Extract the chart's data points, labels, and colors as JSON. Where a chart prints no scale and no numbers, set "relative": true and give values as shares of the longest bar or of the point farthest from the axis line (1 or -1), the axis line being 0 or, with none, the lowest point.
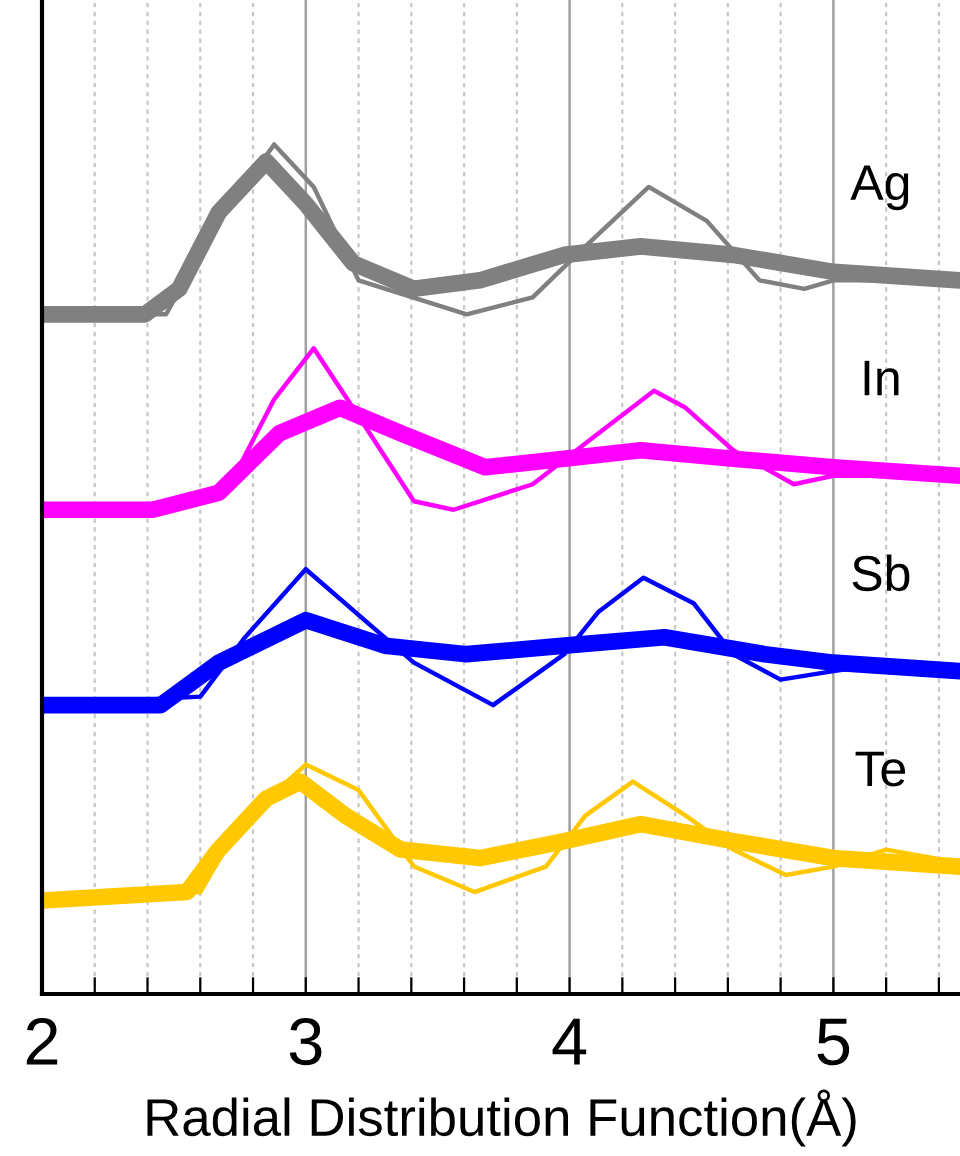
{
  "chart_data": {
    "type": "line",
    "relative": true,
    "xlabel": "Radial Distribution Function(Å)",
    "xlim": [
      2,
      5.48
    ],
    "xticks": [
      2,
      {
        "value": 2.2,
        "label": null
      },
      {
        "value": 2.4,
        "label": null
      },
      {
        "value": 2.6,
        "label": null
      },
      {
        "value": 2.8,
        "label": null
      },
      3,
      {
        "value": 3.2,
        "label": null
      },
      {
        "value": 3.4,
        "label": null
      },
      {
        "value": 3.6,
        "label": null
      },
      {
        "value": 3.8,
        "label": null
      },
      4,
      {
        "value": 4.2,
        "label": null
      },
      {
        "value": 4.4,
        "label": null
      },
      {
        "value": 4.6,
        "label": null
      },
      {
        "value": 4.8,
        "label": null
      },
      5,
      {
        "value": 5.2,
        "label": null
      },
      {
        "value": 5.4,
        "label": null
      }
    ],
    "tick_labels": "x",
    "grid": "x",
    "legend": false,
    "marker": "none",
    "line_style": "solid",
    "series": [
      {
        "name": "Ag",
        "color": "#808080",
        "x": [
          2.0,
          2.39,
          2.52,
          2.67,
          2.85,
          3.0,
          3.18,
          3.41,
          3.66,
          3.98,
          4.27,
          4.62,
          5.0,
          5.48
        ],
        "values": [
          0.8,
          0.8,
          0.83,
          0.92,
          0.98,
          0.93,
          0.86,
          0.83,
          0.84,
          0.87,
          0.88,
          0.87,
          0.85,
          0.84
        ]
      },
      {
        "color": "#808080",
        "x": [
          2.0,
          2.47,
          2.65,
          2.88,
          3.03,
          3.2,
          3.61,
          3.86,
          4.06,
          4.3,
          4.52,
          4.72,
          4.89,
          5.0,
          5.48
        ],
        "values": [
          0.8,
          0.8,
          0.9,
          1.0,
          0.95,
          0.84,
          0.8,
          0.82,
          0.88,
          0.95,
          0.91,
          0.84,
          0.83,
          0.84,
          0.84
        ]
      },
      {
        "name": "In",
        "color": "#ff00ff",
        "x": [
          2.0,
          2.42,
          2.67,
          2.9,
          3.13,
          3.36,
          3.68,
          3.98,
          4.27,
          4.62,
          5.0,
          5.48
        ],
        "values": [
          0.57,
          0.57,
          0.59,
          0.66,
          0.69,
          0.66,
          0.62,
          0.63,
          0.64,
          0.63,
          0.62,
          0.61
        ]
      },
      {
        "color": "#ff00ff",
        "x": [
          2.0,
          2.6,
          2.73,
          2.88,
          3.03,
          3.2,
          3.41,
          3.56,
          3.86,
          4.11,
          4.32,
          4.44,
          4.62,
          4.85,
          5.0,
          5.48
        ],
        "values": [
          0.57,
          0.58,
          0.61,
          0.7,
          0.76,
          0.68,
          0.58,
          0.57,
          0.6,
          0.66,
          0.71,
          0.69,
          0.64,
          0.6,
          0.61,
          0.61
        ]
      },
      {
        "name": "Sb",
        "color": "#0000ff",
        "x": [
          2.0,
          2.45,
          2.67,
          3.0,
          3.3,
          3.61,
          3.98,
          4.36,
          4.74,
          5.0,
          5.48
        ],
        "values": [
          0.34,
          0.34,
          0.39,
          0.44,
          0.41,
          0.4,
          0.41,
          0.42,
          0.4,
          0.39,
          0.38
        ]
      },
      {
        "color": "#0000ff",
        "x": [
          2.0,
          2.6,
          2.77,
          3.0,
          3.26,
          3.41,
          3.71,
          3.98,
          4.11,
          4.28,
          4.47,
          4.62,
          4.8,
          5.0,
          5.23,
          5.48
        ],
        "values": [
          0.34,
          0.35,
          0.42,
          0.5,
          0.43,
          0.39,
          0.34,
          0.4,
          0.45,
          0.49,
          0.46,
          0.4,
          0.37,
          0.38,
          0.39,
          0.38
        ]
      },
      {
        "name": "Te",
        "color": "#ffc800",
        "x": [
          2.0,
          2.55,
          2.67,
          2.85,
          2.98,
          3.15,
          3.36,
          3.66,
          3.98,
          4.27,
          4.62,
          5.0,
          5.48
        ],
        "values": [
          0.11,
          0.12,
          0.17,
          0.23,
          0.25,
          0.21,
          0.17,
          0.16,
          0.18,
          0.2,
          0.18,
          0.16,
          0.15
        ]
      },
      {
        "color": "#ffc800",
        "x": [
          2.0,
          2.6,
          2.75,
          3.0,
          3.2,
          3.41,
          3.64,
          3.91,
          4.06,
          4.24,
          4.44,
          4.62,
          4.82,
          5.0,
          5.2,
          5.38,
          5.48
        ],
        "values": [
          0.11,
          0.12,
          0.2,
          0.27,
          0.24,
          0.15,
          0.12,
          0.15,
          0.21,
          0.25,
          0.21,
          0.17,
          0.14,
          0.15,
          0.17,
          0.16,
          0.15
        ]
      }
    ]
  }
}
